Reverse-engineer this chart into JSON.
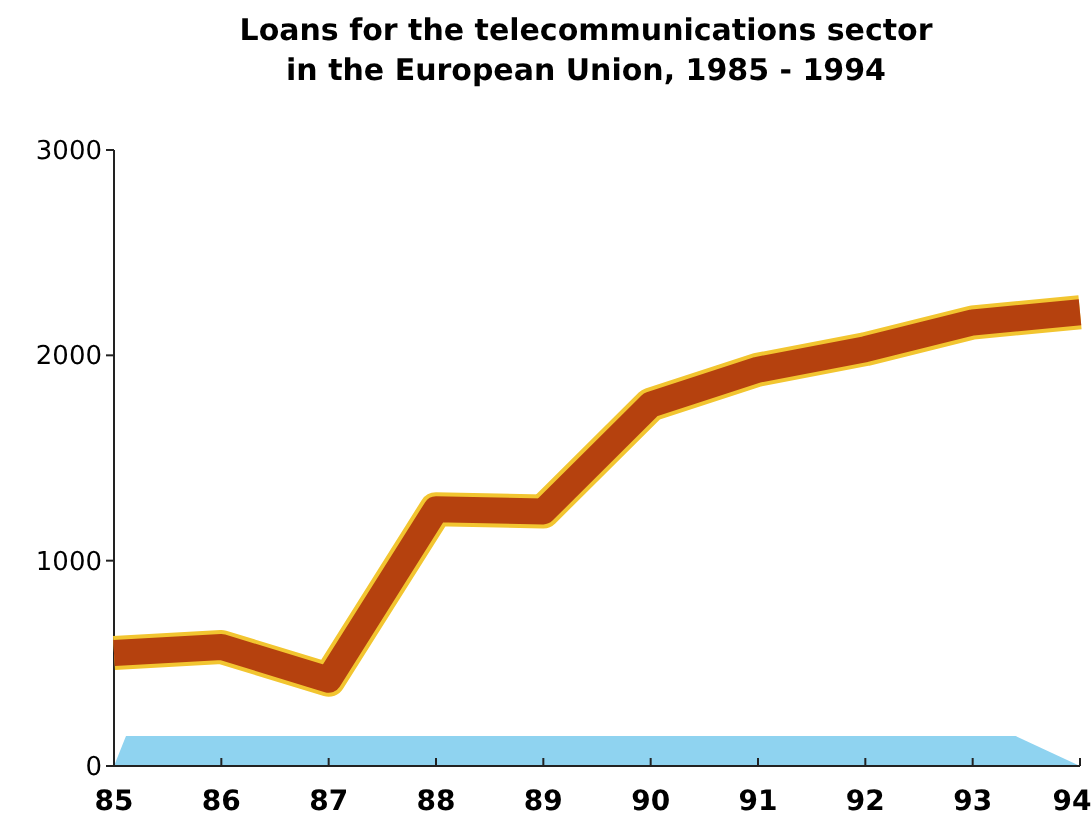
{
  "chart_data": {
    "type": "line",
    "title": "Loans for the telecommunications sector in the European Union, 1985 - 1994",
    "categories": [
      "85",
      "86",
      "87",
      "88",
      "89",
      "90",
      "91",
      "92",
      "93",
      "94"
    ],
    "series": [
      {
        "color": "#b5410e",
        "values": [
          550,
          580,
          420,
          1250,
          1240,
          1760,
          1930,
          2030,
          2160,
          2210
        ]
      }
    ],
    "ylim": [
      0,
      3000
    ],
    "yticks": [
      0,
      1000,
      2000,
      3000
    ],
    "grid": false
  }
}
